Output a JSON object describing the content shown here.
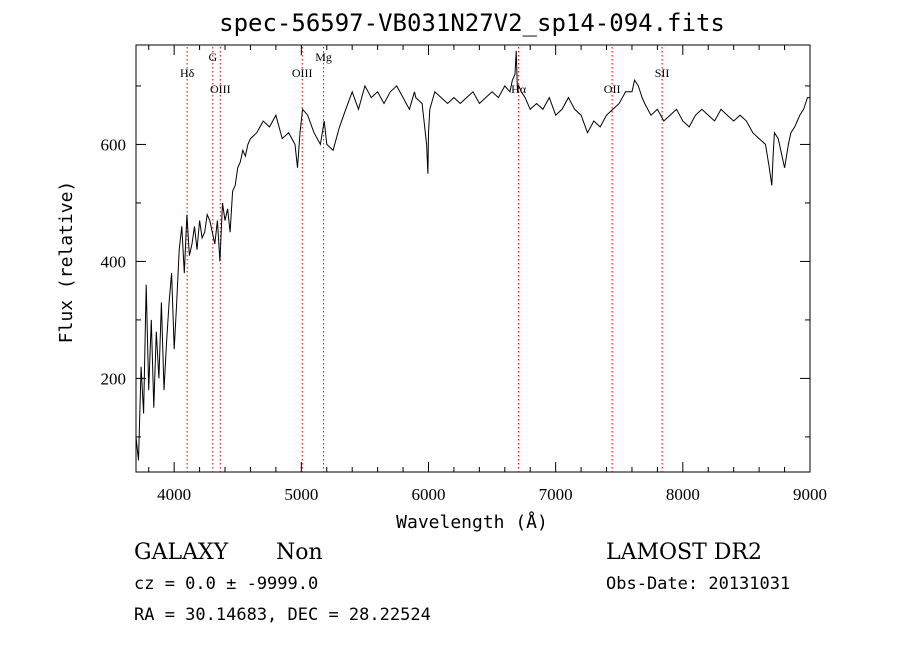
{
  "chart_data": {
    "type": "line",
    "title": "spec-56597-VB031N27V2_sp14-094.fits",
    "xlabel": "Wavelength (Å)",
    "ylabel": "Flux (relative)",
    "xlim": [
      3700,
      9000
    ],
    "ylim": [
      40,
      770
    ],
    "x_ticks": [
      4000,
      5000,
      6000,
      7000,
      8000,
      9000
    ],
    "y_ticks": [
      200,
      400,
      600
    ],
    "grid": false,
    "line_color": "#000000",
    "marker_color": "#cc0000",
    "spectral_lines": [
      {
        "name": "Hδ",
        "wavelength": 4102,
        "label_tier": "low"
      },
      {
        "name": "G",
        "wavelength": 4304,
        "label_tier": "high"
      },
      {
        "name": "OIII",
        "wavelength": 4363,
        "label_tier": "mid"
      },
      {
        "name": "OIII",
        "wavelength": 5007,
        "label_tier": "low"
      },
      {
        "name": "Mg",
        "wavelength": 5175,
        "label_tier": "high"
      },
      {
        "name": "Hα",
        "wavelength": 6709,
        "label_tier": "mid"
      },
      {
        "name": "OII",
        "wavelength": 7444,
        "label_tier": "mid"
      },
      {
        "name": "SII",
        "wavelength": 7837,
        "label_tier": "low"
      }
    ],
    "series": [
      {
        "x": [
          3700,
          3720,
          3740,
          3760,
          3780,
          3800,
          3820,
          3840,
          3860,
          3880,
          3900,
          3920,
          3940,
          3960,
          3980,
          4000,
          4020,
          4040,
          4060,
          4080,
          4100,
          4120,
          4140,
          4160,
          4180,
          4200,
          4220,
          4240,
          4260,
          4280,
          4300,
          4320,
          4340,
          4360,
          4380,
          4400,
          4420,
          4440,
          4460,
          4480,
          4500,
          4520,
          4540,
          4560,
          4580,
          4600,
          4650,
          4700,
          4750,
          4800,
          4850,
          4900,
          4950,
          4970,
          4990,
          5010,
          5050,
          5100,
          5150,
          5180,
          5200,
          5250,
          5300,
          5350,
          5400,
          5450,
          5500,
          5550,
          5600,
          5650,
          5700,
          5750,
          5800,
          5850,
          5890,
          5900,
          5950,
          5985,
          5995,
          6000,
          6010,
          6050,
          6100,
          6150,
          6200,
          6250,
          6300,
          6350,
          6400,
          6450,
          6500,
          6550,
          6600,
          6640,
          6660,
          6680,
          6690,
          6700,
          6710,
          6730,
          6760,
          6800,
          6850,
          6900,
          6950,
          7000,
          7050,
          7100,
          7150,
          7200,
          7250,
          7300,
          7350,
          7400,
          7450,
          7500,
          7550,
          7600,
          7620,
          7650,
          7680,
          7700,
          7750,
          7800,
          7850,
          7900,
          7950,
          8000,
          8050,
          8100,
          8150,
          8200,
          8250,
          8300,
          8350,
          8400,
          8450,
          8500,
          8550,
          8600,
          8650,
          8680,
          8700,
          8710,
          8720,
          8750,
          8800,
          8830,
          8850,
          8880,
          8900,
          8920,
          8950,
          8980,
          9000
        ],
        "y": [
          100,
          60,
          220,
          140,
          360,
          180,
          300,
          150,
          280,
          200,
          330,
          180,
          260,
          330,
          380,
          250,
          330,
          420,
          460,
          380,
          480,
          410,
          430,
          460,
          420,
          470,
          440,
          450,
          480,
          470,
          450,
          430,
          470,
          400,
          500,
          470,
          490,
          450,
          520,
          530,
          560,
          570,
          590,
          580,
          600,
          610,
          620,
          640,
          630,
          650,
          610,
          620,
          600,
          560,
          620,
          660,
          650,
          620,
          600,
          640,
          600,
          590,
          630,
          660,
          690,
          660,
          700,
          680,
          690,
          670,
          690,
          700,
          680,
          660,
          690,
          680,
          670,
          600,
          550,
          620,
          660,
          690,
          680,
          670,
          680,
          670,
          680,
          690,
          670,
          680,
          690,
          680,
          700,
          690,
          710,
          720,
          760,
          690,
          700,
          690,
          680,
          660,
          670,
          660,
          680,
          650,
          660,
          680,
          660,
          650,
          620,
          640,
          630,
          650,
          660,
          670,
          690,
          690,
          710,
          700,
          680,
          670,
          650,
          660,
          640,
          650,
          660,
          640,
          630,
          650,
          660,
          650,
          640,
          660,
          650,
          640,
          650,
          640,
          620,
          610,
          600,
          560,
          530,
          580,
          620,
          610,
          560,
          600,
          620,
          630,
          640,
          650,
          660,
          680,
          680
        ]
      }
    ]
  },
  "info": {
    "class": "GALAXY",
    "subclass": "Non",
    "survey": "LAMOST DR2",
    "cz": "cz = 0.0 ± -9999.0",
    "obs_date": "Obs-Date: 20131031",
    "coords": "RA =  30.14683, DEC =  28.22524"
  }
}
